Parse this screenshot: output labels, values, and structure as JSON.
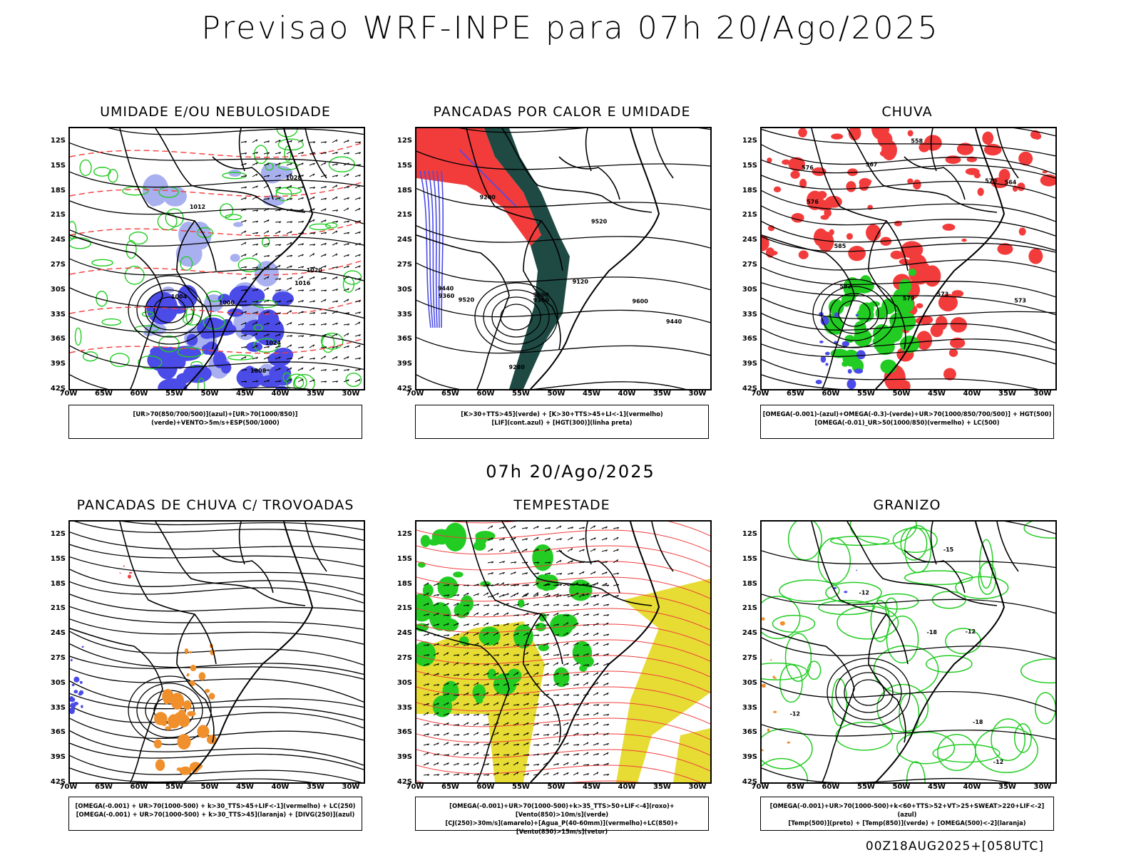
{
  "main_title": "Previsao WRF-INPE  para 07h 20/Ago/2025",
  "mid_label": "07h 20/Ago/2025",
  "footer": "00Z18AUG2025+[058UTC]",
  "y_ticks": [
    "12S",
    "15S",
    "18S",
    "21S",
    "24S",
    "27S",
    "30S",
    "33S",
    "36S",
    "39S",
    "42S"
  ],
  "x_ticks": [
    "70W",
    "65W",
    "60W",
    "55W",
    "50W",
    "45W",
    "40W",
    "35W",
    "30W"
  ],
  "colors": {
    "azul": "#4b4be8",
    "azul_claro": "#a8b0f0",
    "verde": "#22cc22",
    "verde_escuro": "#1f4a44",
    "vermelho": "#f23c3c",
    "laranja": "#f0902c",
    "amarelo": "#e6dc34",
    "preto": "#000000"
  },
  "panels": [
    {
      "title": "UMIDADE E/OU NEBULOSIDADE",
      "legend_lines": [
        "[UR>70(850/700/500)](azul)+[UR>70(1000/850)](verde)+VENTO>5m/s+ESP(500/1000)"
      ],
      "contour_labels": [
        "1012",
        "1016",
        "1020",
        "1024",
        "1028",
        "1008",
        "1004",
        "1000"
      ]
    },
    {
      "title": "PANCADAS POR CALOR E UMIDADE",
      "legend_lines": [
        "[K>30+TTS>45](verde) + [K>30+TTS>45+LI<-1](vermelho)",
        "[LIF](cont.azul) + [HGT(300)](linha preta)"
      ],
      "contour_labels": [
        "9520",
        "9600",
        "9600",
        "9440",
        "9520",
        "9360",
        "9280",
        "9200",
        "9440",
        "9120",
        "9360"
      ]
    },
    {
      "title": "CHUVA",
      "legend_lines": [
        "[OMEGA(-0.001)-(azul)+OMEGA(-0.3)-(verde)+UR>70(1000/850/700/500)] + HGT(500)",
        "[OMEGA(-0.01)_UR>50(1000/850)(vermelho) + LC(500)"
      ],
      "contour_labels": [
        "582",
        "585",
        "573",
        "576",
        "579",
        "564",
        "558",
        "576",
        "573",
        "570",
        "567"
      ]
    },
    {
      "title": "PANCADAS DE CHUVA C/ TROVOADAS",
      "legend_lines": [
        "[OMEGA(-0.001) + UR>70(1000-500) + k>30_TTS>45+LIF<-1](vermelho) + LC(250)",
        "[OMEGA(-0.001) + UR>70(1000-500) + k>30_TTS>45](laranja) + [DIVG(250)](azul)"
      ],
      "contour_labels": []
    },
    {
      "title": "TEMPESTADE",
      "legend_lines": [
        "[OMEGA(-0.001)+UR>70(1000-500)+k>35_TTS>50+LIF<-4](roxo)+[Vento(850)>10m/s](verde)",
        "[CJ(250)>30m/s](amarelo)+[Agua_P(40-60mm)](vermelho)+LC(850)+[Vento(850)>15m/s](vetor)"
      ],
      "contour_labels": []
    },
    {
      "title": "GRANIZO",
      "legend_lines": [
        "[OMEGA(-0.001)+UR>70(1000-500)+k<60+TTS>52+VT>25+SWEAT>220+LIF<-2](azul)",
        "[Temp(500)](preto) + [Temp(850)](verde) + [OMEGA(500)<-2](laranja)"
      ],
      "contour_labels": [
        "-12",
        "-12",
        "-18",
        "-12",
        "-18",
        "-12",
        "-15"
      ]
    }
  ]
}
